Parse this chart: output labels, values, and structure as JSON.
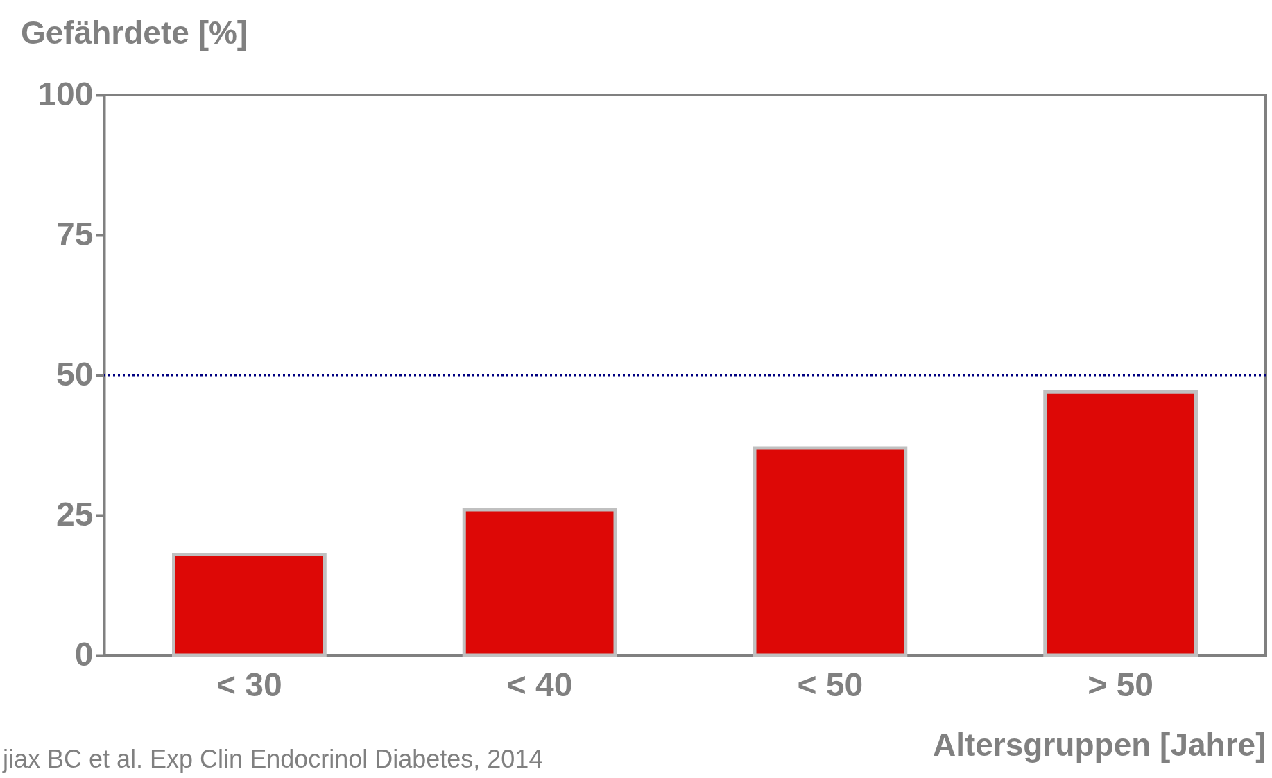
{
  "chart_data": {
    "type": "bar",
    "ylabel": "Gefährdete [%]",
    "xlabel": "Altersgruppen [Jahre]",
    "categories": [
      "< 30",
      "< 40",
      "< 50",
      "> 50"
    ],
    "values": [
      18,
      26,
      37,
      47
    ],
    "color": "#dd0806",
    "ylim": [
      0,
      100
    ],
    "yticks": [
      0,
      25,
      50,
      75,
      100
    ],
    "grid": false,
    "ref_lines": [
      {
        "axis": "y",
        "value": 50,
        "color": "#000080",
        "line_style": "dotted"
      }
    ],
    "annotations": [
      "jiax BC et al. Exp Clin Endocrinol Diabetes, 2014"
    ]
  }
}
